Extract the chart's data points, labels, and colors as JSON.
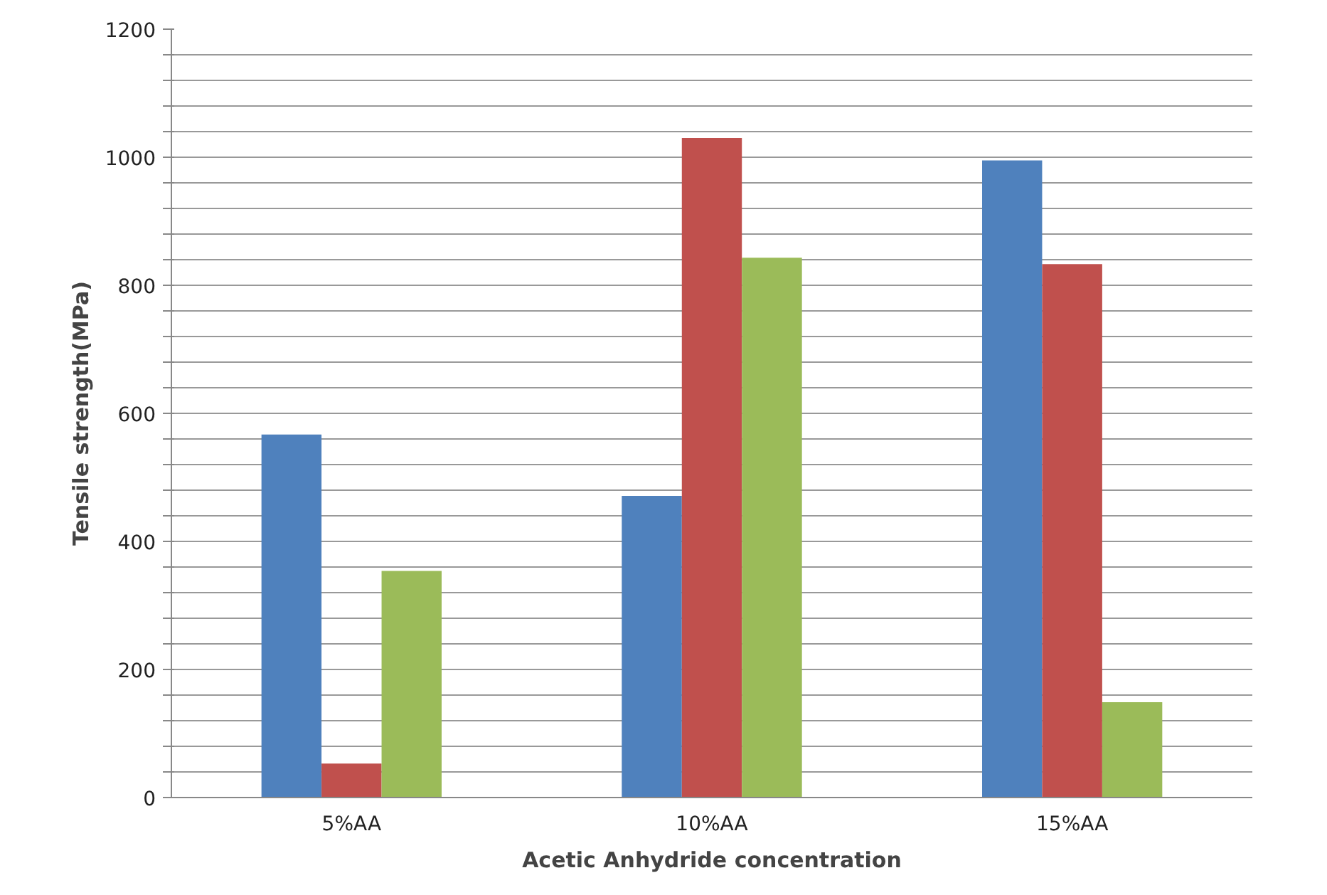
{
  "chart_data": {
    "type": "bar",
    "xlabel": "Acetic Anhydride concentration",
    "ylabel": "Tensile strength(MPa)",
    "categories": [
      "5%AA",
      "10%AA",
      "15%AA"
    ],
    "series": [
      {
        "color": "#4f81bd",
        "values": [
          567,
          471,
          995
        ]
      },
      {
        "color": "#c0504d",
        "values": [
          53,
          1030,
          833
        ]
      },
      {
        "color": "#9bbb59",
        "values": [
          354,
          843,
          149
        ]
      }
    ],
    "ylim": [
      0,
      1200
    ],
    "yticks": [
      0,
      {
        "value": 40,
        "label": null
      },
      {
        "value": 80,
        "label": null
      },
      {
        "value": 120,
        "label": null
      },
      {
        "value": 160,
        "label": null
      },
      200,
      {
        "value": 240,
        "label": null
      },
      {
        "value": 280,
        "label": null
      },
      {
        "value": 320,
        "label": null
      },
      {
        "value": 360,
        "label": null
      },
      400,
      {
        "value": 440,
        "label": null
      },
      {
        "value": 480,
        "label": null
      },
      {
        "value": 520,
        "label": null
      },
      {
        "value": 560,
        "label": null
      },
      600,
      {
        "value": 640,
        "label": null
      },
      {
        "value": 680,
        "label": null
      },
      {
        "value": 720,
        "label": null
      },
      {
        "value": 760,
        "label": null
      },
      800,
      {
        "value": 840,
        "label": null
      },
      {
        "value": 880,
        "label": null
      },
      {
        "value": 920,
        "label": null
      },
      {
        "value": 960,
        "label": null
      },
      1000,
      {
        "value": 1040,
        "label": null
      },
      {
        "value": 1080,
        "label": null
      },
      {
        "value": 1120,
        "label": null
      },
      {
        "value": 1160,
        "label": null
      },
      1200
    ],
    "grid": "y"
  }
}
